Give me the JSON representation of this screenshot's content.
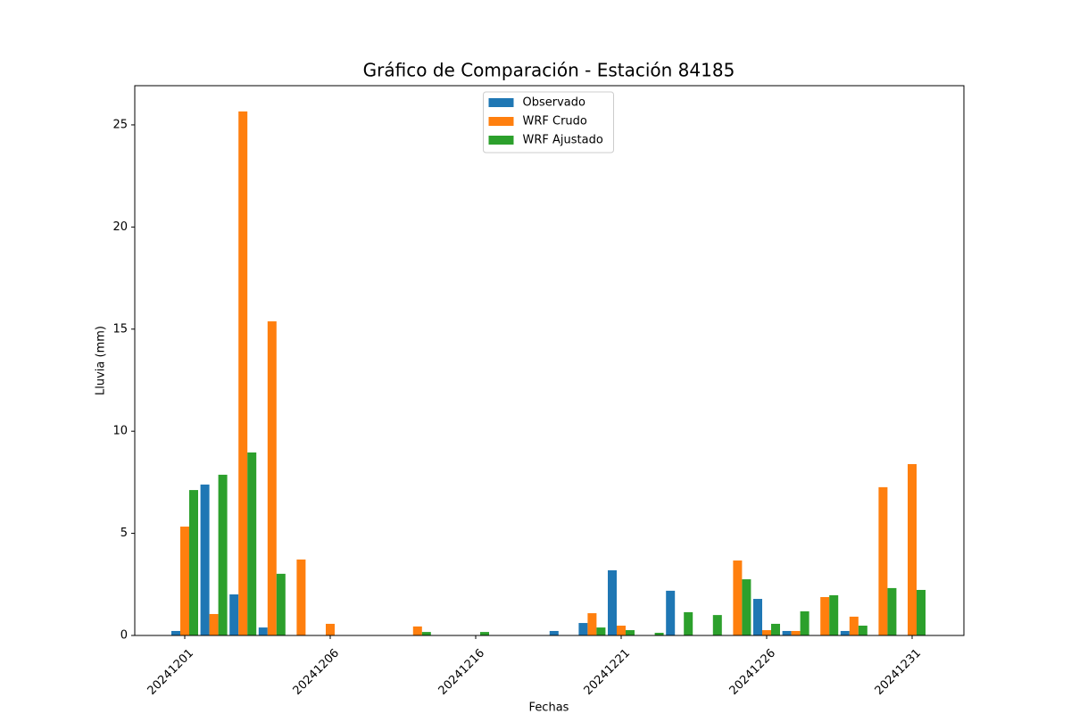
{
  "chart_data": {
    "type": "bar",
    "title": "Gráfico de Comparación - Estación 84185",
    "xlabel": "Fechas",
    "ylabel": "Lluvia (mm)",
    "categories": [
      "20241201",
      null,
      null,
      null,
      null,
      "20241206",
      null,
      null,
      null,
      null,
      "20241216",
      null,
      null,
      null,
      null,
      "20241221",
      null,
      null,
      null,
      null,
      "20241226",
      null,
      null,
      null,
      null,
      "20241231"
    ],
    "series": [
      {
        "name": "Observado",
        "color": "#1f77b4",
        "values": [
          0.22,
          7.39,
          2.01,
          0.39,
          0,
          0,
          0,
          0,
          0,
          0,
          0,
          0,
          0,
          0.22,
          0.61,
          3.19,
          0,
          2.19,
          0,
          0,
          1.79,
          0.22,
          0,
          0.22,
          0,
          0
        ]
      },
      {
        "name": "WRF Crudo",
        "color": "#ff7f0e",
        "values": [
          5.33,
          1.05,
          25.66,
          15.38,
          3.72,
          0.57,
          0,
          0,
          0.44,
          0,
          0,
          0,
          0,
          0,
          1.09,
          0.48,
          0,
          0,
          0,
          3.67,
          0.26,
          0.22,
          1.88,
          0.92,
          7.26,
          8.39
        ]
      },
      {
        "name": "WRF Ajustado",
        "color": "#2ca02c",
        "values": [
          7.12,
          7.87,
          8.96,
          3.02,
          0,
          0,
          0,
          0,
          0.17,
          0,
          0.17,
          0,
          0,
          0,
          0.39,
          0.26,
          0.13,
          1.14,
          1.0,
          2.75,
          0.57,
          1.18,
          1.97,
          0.48,
          2.32,
          2.23
        ]
      }
    ],
    "ylim": [
      0,
      26.92
    ],
    "yticks": [
      0,
      5,
      10,
      15,
      20,
      25
    ],
    "legend": "upper center"
  }
}
